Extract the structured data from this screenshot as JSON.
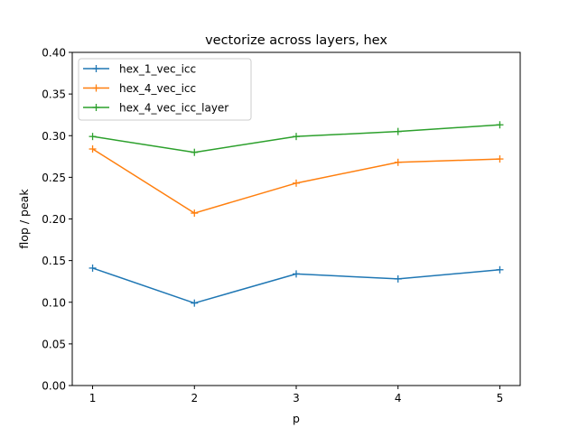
{
  "chart_data": {
    "type": "line",
    "title": "vectorize across layers, hex",
    "xlabel": "p",
    "ylabel": "flop / peak",
    "x": [
      1,
      2,
      3,
      4,
      5
    ],
    "xlim": [
      0.8,
      5.2
    ],
    "ylim": [
      0.0,
      0.4
    ],
    "xticks": [
      "1",
      "2",
      "3",
      "4",
      "5"
    ],
    "yticks": [
      "0.00",
      "0.05",
      "0.10",
      "0.15",
      "0.20",
      "0.25",
      "0.30",
      "0.35",
      "0.40"
    ],
    "grid": false,
    "legend_position": "upper-left",
    "marker": "plus",
    "series": [
      {
        "name": "hex_1_vec_icc",
        "color": "#1f77b4",
        "values": [
          0.141,
          0.099,
          0.134,
          0.128,
          0.139
        ]
      },
      {
        "name": "hex_4_vec_icc",
        "color": "#ff7f0e",
        "values": [
          0.284,
          0.207,
          0.243,
          0.268,
          0.272
        ]
      },
      {
        "name": "hex_4_vec_icc_layer",
        "color": "#2ca02c",
        "values": [
          0.299,
          0.28,
          0.299,
          0.305,
          0.313
        ]
      }
    ]
  }
}
